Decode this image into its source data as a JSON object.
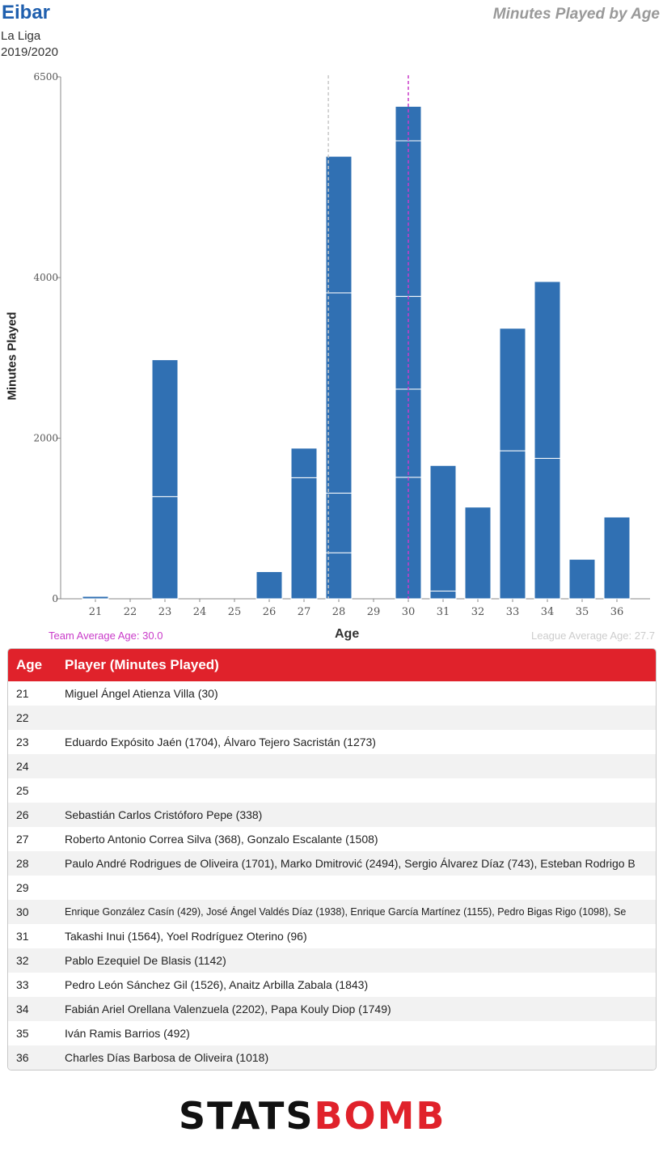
{
  "header": {
    "team": "Eibar",
    "league": "La Liga",
    "season": "2019/2020",
    "title": "Minutes Played by Age"
  },
  "chart_data": {
    "type": "bar",
    "stacked": true,
    "xlabel": "Age",
    "ylabel": "Minutes Played",
    "ylim": [
      0,
      6500
    ],
    "yticks": [
      0,
      2000,
      4000,
      6500
    ],
    "categories": [
      21,
      22,
      23,
      24,
      25,
      26,
      27,
      28,
      29,
      30,
      31,
      32,
      33,
      34,
      35,
      36
    ],
    "segments": {
      "21": [
        30
      ],
      "22": [],
      "23": [
        1273,
        1704
      ],
      "24": [],
      "25": [],
      "26": [
        338
      ],
      "27": [
        1508,
        368
      ],
      "28": [
        573,
        743,
        2494,
        1701
      ],
      "29": [],
      "30": [
        1513,
        1098,
        1155,
        1938,
        429
      ],
      "31": [
        96,
        1564
      ],
      "32": [
        1142
      ],
      "33": [
        1843,
        1526
      ],
      "34": [
        1749,
        2202
      ],
      "35": [
        492
      ],
      "36": [
        1018
      ]
    },
    "team_average_age": 30.0,
    "league_average_age": 27.7,
    "bar_color": "#3070b3",
    "team_avg_color": "#c93bc9",
    "league_avg_color": "#c8c8c8"
  },
  "annotations": {
    "team_avg_text": "Team Average Age: 30.0",
    "league_avg_text": "League Average Age: 27.7"
  },
  "table": {
    "headers": [
      "Age",
      "Player (Minutes Played)"
    ],
    "rows": [
      {
        "age": "21",
        "players": "Miguel Ángel Atienza Villa (30)"
      },
      {
        "age": "22",
        "players": ""
      },
      {
        "age": "23",
        "players": "Eduardo Expósito Jaén (1704), Álvaro Tejero Sacristán (1273)"
      },
      {
        "age": "24",
        "players": ""
      },
      {
        "age": "25",
        "players": ""
      },
      {
        "age": "26",
        "players": "Sebastián Carlos Cristóforo Pepe (338)"
      },
      {
        "age": "27",
        "players": "Roberto Antonio Correa Silva (368), Gonzalo Escalante (1508)"
      },
      {
        "age": "28",
        "players": "Paulo André Rodrigues de Oliveira (1701), Marko Dmitrović (2494), Sergio Álvarez Díaz (743), Esteban Rodrigo B"
      },
      {
        "age": "29",
        "players": ""
      },
      {
        "age": "30",
        "players": "Enrique González Casín (429), José Ángel Valdés Díaz (1938), Enrique García Martínez (1155), Pedro Bigas Rigo (1098), Se"
      },
      {
        "age": "31",
        "players": "Takashi Inui (1564), Yoel Rodríguez Oterino (96)"
      },
      {
        "age": "32",
        "players": "Pablo Ezequiel De Blasis (1142)"
      },
      {
        "age": "33",
        "players": "Pedro León Sánchez Gil (1526), Anaitz Arbilla Zabala (1843)"
      },
      {
        "age": "34",
        "players": "Fabián Ariel Orellana Valenzuela (2202), Papa Kouly Diop (1749)"
      },
      {
        "age": "35",
        "players": "Iván Ramis Barrios (492)"
      },
      {
        "age": "36",
        "players": "Charles Días Barbosa de Oliveira (1018)"
      }
    ]
  },
  "logo": {
    "part1": "STATS",
    "part2": "BOMB"
  }
}
